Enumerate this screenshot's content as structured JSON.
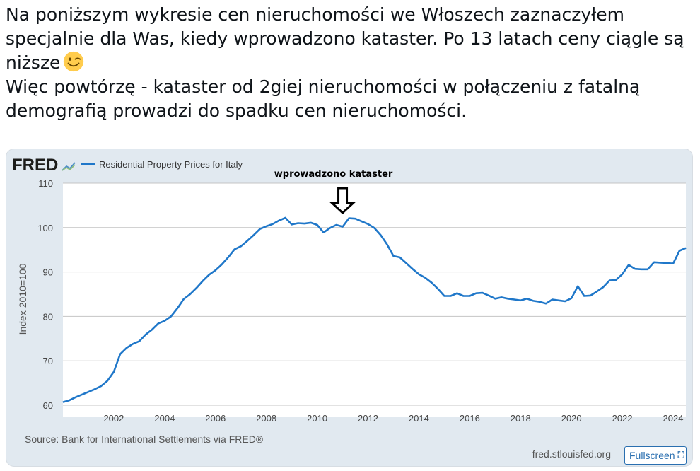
{
  "post": {
    "paragraph1": "Na poniższym wykresie cen nieruchomości we Włoszech zaznaczyłem specjalnie dla Was, kiedy wprowadzono kataster. Po 13 latach ceny ciągle są niższe",
    "emoji_icon": "winking-face-icon",
    "paragraph2": "Więc powtórzę - kataster od 2giej nieruchomości w połączeniu z fatalną demografią prowadzi do spadku cen nieruchomości."
  },
  "fred": {
    "logo": "FRED",
    "source": "Source: Bank for International Settlements via FRED®",
    "site": "fred.stlouisfed.org",
    "fullscreen_label": "Fullscreen",
    "fullscreen_icon": "expand-icon"
  },
  "colors": {
    "line": "#1f77c9",
    "background": "#e1e9f0",
    "plot": "#ffffff",
    "grid": "#c4c4c4"
  },
  "chart_data": {
    "type": "line",
    "title": "",
    "legend": "Residential Property Prices for Italy",
    "ylabel": "Index 2010=100",
    "xlabel": "",
    "ylim": [
      60,
      110
    ],
    "yticks": [
      60,
      70,
      80,
      90,
      100,
      110
    ],
    "xlim": [
      2000,
      2024.5
    ],
    "xticks": [
      2002,
      2004,
      2006,
      2008,
      2010,
      2012,
      2014,
      2016,
      2018,
      2020,
      2022,
      2024
    ],
    "grid": true,
    "annotation": {
      "text": "wprowadzono kataster",
      "x": 2011,
      "icon": "down-arrow-icon"
    },
    "series": [
      {
        "name": "Residential Property Prices for Italy",
        "x": [
          2000.0,
          2000.25,
          2000.5,
          2000.75,
          2001.0,
          2001.25,
          2001.5,
          2001.75,
          2002.0,
          2002.25,
          2002.5,
          2002.75,
          2003.0,
          2003.25,
          2003.5,
          2003.75,
          2004.0,
          2004.25,
          2004.5,
          2004.75,
          2005.0,
          2005.25,
          2005.5,
          2005.75,
          2006.0,
          2006.25,
          2006.5,
          2006.75,
          2007.0,
          2007.25,
          2007.5,
          2007.75,
          2008.0,
          2008.25,
          2008.5,
          2008.75,
          2009.0,
          2009.25,
          2009.5,
          2009.75,
          2010.0,
          2010.25,
          2010.5,
          2010.75,
          2011.0,
          2011.25,
          2011.5,
          2011.75,
          2012.0,
          2012.25,
          2012.5,
          2012.75,
          2013.0,
          2013.25,
          2013.5,
          2013.75,
          2014.0,
          2014.25,
          2014.5,
          2014.75,
          2015.0,
          2015.25,
          2015.5,
          2015.75,
          2016.0,
          2016.25,
          2016.5,
          2016.75,
          2017.0,
          2017.25,
          2017.5,
          2017.75,
          2018.0,
          2018.25,
          2018.5,
          2018.75,
          2019.0,
          2019.25,
          2019.5,
          2019.75,
          2020.0,
          2020.25,
          2020.5,
          2020.75,
          2021.0,
          2021.25,
          2021.5,
          2021.75,
          2022.0,
          2022.25,
          2022.5,
          2022.75,
          2023.0,
          2023.25,
          2023.5,
          2023.75,
          2024.0,
          2024.25,
          2024.5
        ],
        "values": [
          60.7,
          61.1,
          61.8,
          62.4,
          63.0,
          63.6,
          64.3,
          65.5,
          67.5,
          71.5,
          72.9,
          73.8,
          74.4,
          75.9,
          77.0,
          78.4,
          79.0,
          80.0,
          81.8,
          83.9,
          85.0,
          86.4,
          88.0,
          89.4,
          90.4,
          91.7,
          93.3,
          95.1,
          95.8,
          97.0,
          98.3,
          99.7,
          100.3,
          100.8,
          101.6,
          102.2,
          100.7,
          101.0,
          100.9,
          101.1,
          100.6,
          98.9,
          99.9,
          100.6,
          100.2,
          102.1,
          102.0,
          101.4,
          100.8,
          99.9,
          98.3,
          96.2,
          93.6,
          93.3,
          92.0,
          90.7,
          89.5,
          88.7,
          87.6,
          86.2,
          84.6,
          84.6,
          85.2,
          84.6,
          84.6,
          85.2,
          85.3,
          84.7,
          84.0,
          84.3,
          84.0,
          83.8,
          83.6,
          84.0,
          83.5,
          83.3,
          82.9,
          83.8,
          83.6,
          83.4,
          84.1,
          86.8,
          84.6,
          84.7,
          85.6,
          86.6,
          88.1,
          88.2,
          89.5,
          91.6,
          90.7,
          90.6,
          90.6,
          92.2,
          92.1,
          92.0,
          91.9,
          94.8,
          95.4
        ]
      }
    ]
  }
}
